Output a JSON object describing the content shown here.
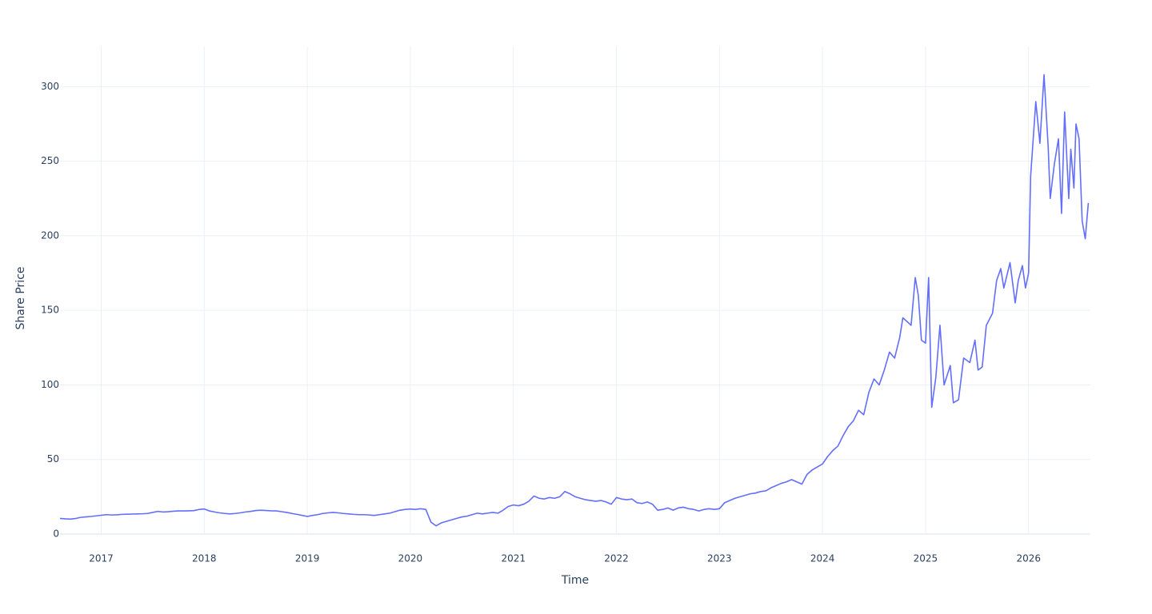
{
  "chart_data": {
    "type": "line",
    "xlabel": "Time",
    "ylabel": "Share Price",
    "color": "#636efa",
    "grid": true,
    "xlim": [
      2016.6,
      2026.6
    ],
    "xticks": [
      2017,
      2018,
      2019,
      2020,
      2021,
      2022,
      2023,
      2024,
      2025,
      2026
    ],
    "ylim": [
      0,
      327
    ],
    "yticks": [
      0,
      50,
      100,
      150,
      200,
      250,
      300
    ],
    "x": [
      2016.6,
      2016.65,
      2016.7,
      2016.75,
      2016.8,
      2016.85,
      2016.9,
      2016.95,
      2017,
      2017.05,
      2017.1,
      2017.15,
      2017.2,
      2017.25,
      2017.3,
      2017.35,
      2017.4,
      2017.45,
      2017.5,
      2017.55,
      2017.6,
      2017.65,
      2017.7,
      2017.75,
      2017.8,
      2017.85,
      2017.9,
      2017.95,
      2018,
      2018.05,
      2018.1,
      2018.15,
      2018.2,
      2018.25,
      2018.3,
      2018.35,
      2018.4,
      2018.45,
      2018.5,
      2018.55,
      2018.6,
      2018.65,
      2018.7,
      2018.75,
      2018.8,
      2018.85,
      2018.9,
      2018.95,
      2019,
      2019.05,
      2019.1,
      2019.15,
      2019.2,
      2019.25,
      2019.3,
      2019.35,
      2019.4,
      2019.45,
      2019.5,
      2019.55,
      2019.6,
      2019.65,
      2019.7,
      2019.75,
      2019.8,
      2019.85,
      2019.9,
      2019.95,
      2020,
      2020.05,
      2020.1,
      2020.15,
      2020.2,
      2020.25,
      2020.3,
      2020.35,
      2020.4,
      2020.45,
      2020.5,
      2020.55,
      2020.6,
      2020.65,
      2020.7,
      2020.75,
      2020.8,
      2020.85,
      2020.9,
      2020.95,
      2021,
      2021.05,
      2021.1,
      2021.15,
      2021.2,
      2021.25,
      2021.3,
      2021.35,
      2021.4,
      2021.45,
      2021.5,
      2021.55,
      2021.6,
      2021.65,
      2021.7,
      2021.75,
      2021.8,
      2021.85,
      2021.9,
      2021.95,
      2022,
      2022.05,
      2022.1,
      2022.15,
      2022.2,
      2022.25,
      2022.3,
      2022.35,
      2022.4,
      2022.45,
      2022.5,
      2022.55,
      2022.6,
      2022.65,
      2022.7,
      2022.75,
      2022.8,
      2022.85,
      2022.9,
      2022.95,
      2023,
      2023.05,
      2023.1,
      2023.15,
      2023.2,
      2023.25,
      2023.3,
      2023.35,
      2023.4,
      2023.45,
      2023.5,
      2023.55,
      2023.6,
      2023.65,
      2023.7,
      2023.75,
      2023.8,
      2023.85,
      2023.9,
      2023.95,
      2024,
      2024.05,
      2024.1,
      2024.15,
      2024.2,
      2024.25,
      2024.3,
      2024.35,
      2024.4,
      2024.45,
      2024.5,
      2024.55,
      2024.6,
      2024.65,
      2024.7,
      2024.75,
      2024.78,
      2024.86,
      2024.9,
      2024.93,
      2024.96,
      2025,
      2025.03,
      2025.06,
      2025.1,
      2025.14,
      2025.18,
      2025.24,
      2025.27,
      2025.32,
      2025.37,
      2025.43,
      2025.48,
      2025.51,
      2025.55,
      2025.59,
      2025.65,
      2025.69,
      2025.73,
      2025.76,
      2025.82,
      2025.87,
      2025.9,
      2025.94,
      2025.97,
      2026,
      2026.02,
      2026.07,
      2026.11,
      2026.15,
      2026.19,
      2026.21,
      2026.25,
      2026.29,
      2026.32,
      2026.35,
      2026.39,
      2026.41,
      2026.44,
      2026.46,
      2026.49,
      2026.52,
      2026.55,
      2026.58
    ],
    "values": [
      10.5,
      10.2,
      10,
      10.4,
      11.2,
      11.5,
      11.8,
      12.2,
      12.6,
      13,
      12.8,
      12.9,
      13.2,
      13.3,
      13.4,
      13.5,
      13.6,
      13.8,
      14.5,
      15.2,
      14.8,
      15,
      15.3,
      15.5,
      15.5,
      15.6,
      15.7,
      16.5,
      16.8,
      15.5,
      14.8,
      14.2,
      13.8,
      13.5,
      13.8,
      14.2,
      14.8,
      15.2,
      15.8,
      16,
      15.8,
      15.6,
      15.5,
      15,
      14.5,
      13.8,
      13.2,
      12.5,
      11.8,
      12.5,
      13,
      13.8,
      14.2,
      14.5,
      14.2,
      13.8,
      13.5,
      13.2,
      13,
      13,
      12.8,
      12.5,
      13,
      13.5,
      14,
      15,
      16,
      16.5,
      16.8,
      16.5,
      17,
      16.5,
      8,
      5.5,
      7.5,
      8.5,
      9.5,
      10.5,
      11.5,
      12,
      13,
      14,
      13.5,
      14,
      14.5,
      14,
      16,
      18.5,
      19.5,
      19,
      20,
      22,
      25.5,
      24,
      23.5,
      24.5,
      24,
      25,
      28.5,
      27,
      25,
      24,
      23,
      22.5,
      22,
      22.5,
      21.5,
      20,
      24.5,
      23.5,
      23,
      23.5,
      21,
      20.5,
      21.5,
      20,
      16,
      16.5,
      17.5,
      16,
      17.5,
      18,
      17,
      16.5,
      15.5,
      16.5,
      17,
      16.5,
      17,
      21,
      22.5,
      24,
      25,
      26,
      27,
      27.5,
      28.5,
      29,
      31,
      32.5,
      34,
      35,
      36.5,
      35,
      33.5,
      40,
      43,
      45,
      47,
      52,
      56,
      59,
      66,
      72,
      76,
      83,
      80,
      95,
      104,
      100,
      110,
      122,
      118,
      132,
      145,
      140,
      172,
      160,
      130,
      128,
      172,
      85,
      105,
      140,
      100,
      113,
      88,
      90,
      118,
      115,
      130,
      110,
      112,
      140,
      148,
      170,
      178,
      165,
      182,
      155,
      170,
      180,
      165,
      175,
      240,
      290,
      262,
      308,
      260,
      225,
      248,
      265,
      215,
      283,
      225,
      258,
      232,
      275,
      265,
      210,
      198,
      222
    ]
  }
}
